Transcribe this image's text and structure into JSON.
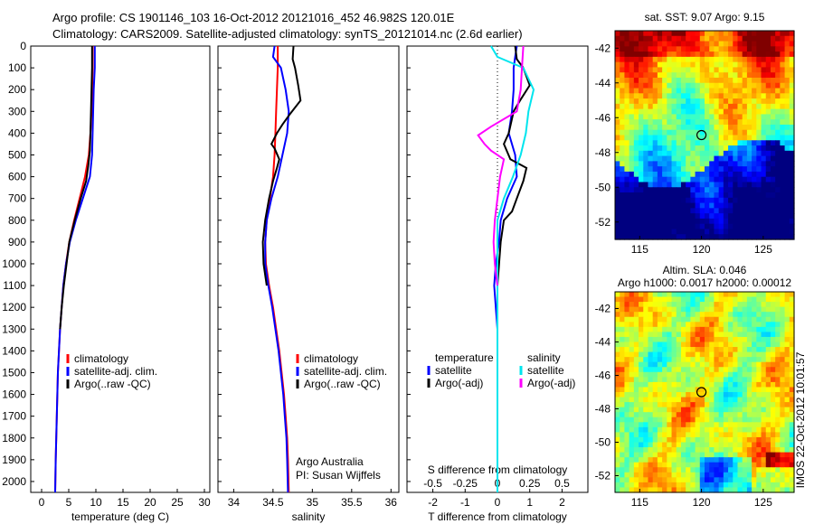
{
  "header": {
    "title_line1": "Argo profile: CS 1901146_103 16-Oct-2012 20121016_452 46.982S 120.01E",
    "title_line2": "Climatology: CARS2009. Satellite-adjusted climatology: synTS_20121014.nc (2.6d earlier)"
  },
  "depth_axis": {
    "ticks": [
      "0",
      "100",
      "200",
      "300",
      "400",
      "500",
      "600",
      "700",
      "800",
      "900",
      "1000",
      "1100",
      "1200",
      "1300",
      "1400",
      "1500",
      "1600",
      "1700",
      "1800",
      "1900",
      "2000"
    ],
    "range": [
      0,
      2050
    ]
  },
  "colors": {
    "climatology": "#ff0000",
    "satellite": "#0000ff",
    "argo": "#000000",
    "sal_satellite": "#00e5ee",
    "sal_argo": "#ff00ff"
  },
  "chart_data": [
    {
      "type": "line",
      "xlabel": "temperature (deg C)",
      "xlim": [
        -2,
        31
      ],
      "xticks": [
        "0",
        "5",
        "10",
        "15",
        "20",
        "25",
        "30"
      ],
      "ylim": [
        0,
        2050
      ],
      "legend": [
        "climatology",
        "satellite-adj. clim.",
        "Argo(..raw -QC)"
      ],
      "series": [
        {
          "name": "climatology",
          "points": [
            [
              9.4,
              0
            ],
            [
              9.4,
              100
            ],
            [
              9.3,
              200
            ],
            [
              9.2,
              300
            ],
            [
              9.0,
              400
            ],
            [
              8.7,
              500
            ],
            [
              8.0,
              600
            ],
            [
              7.0,
              700
            ],
            [
              6.0,
              800
            ],
            [
              5.1,
              900
            ],
            [
              4.5,
              1000
            ],
            [
              4.0,
              1100
            ],
            [
              3.7,
              1200
            ],
            [
              3.4,
              1300
            ],
            [
              3.2,
              1400
            ],
            [
              3.0,
              1500
            ],
            [
              2.9,
              1600
            ],
            [
              2.8,
              1700
            ],
            [
              2.7,
              1800
            ],
            [
              2.6,
              1900
            ],
            [
              2.5,
              2050
            ]
          ]
        },
        {
          "name": "satellite-adj. clim.",
          "points": [
            [
              9.8,
              0
            ],
            [
              9.8,
              100
            ],
            [
              9.6,
              200
            ],
            [
              9.5,
              300
            ],
            [
              9.4,
              400
            ],
            [
              9.3,
              500
            ],
            [
              8.9,
              600
            ],
            [
              7.6,
              700
            ],
            [
              6.3,
              800
            ],
            [
              5.2,
              900
            ],
            [
              4.5,
              1000
            ],
            [
              4.0,
              1100
            ],
            [
              3.7,
              1200
            ],
            [
              3.4,
              1300
            ],
            [
              3.2,
              1400
            ],
            [
              3.0,
              1500
            ],
            [
              2.9,
              1600
            ],
            [
              2.8,
              1700
            ],
            [
              2.7,
              1800
            ],
            [
              2.6,
              1900
            ],
            [
              2.5,
              2050
            ]
          ]
        },
        {
          "name": "Argo(..raw -QC)",
          "points": [
            [
              9.3,
              0
            ],
            [
              9.3,
              100
            ],
            [
              9.2,
              200
            ],
            [
              9.1,
              300
            ],
            [
              9.0,
              400
            ],
            [
              8.9,
              480
            ],
            [
              8.6,
              550
            ],
            [
              8.2,
              620
            ],
            [
              7.2,
              700
            ],
            [
              6.1,
              800
            ],
            [
              5.1,
              900
            ],
            [
              4.6,
              1000
            ],
            [
              4.1,
              1100
            ],
            [
              3.7,
              1200
            ],
            [
              3.4,
              1300
            ]
          ]
        }
      ]
    },
    {
      "type": "line",
      "xlabel": "salinity",
      "xlim": [
        33.8,
        36.1
      ],
      "xticks": [
        "34",
        "34.5",
        "35",
        "35.5",
        "36"
      ],
      "ylim": [
        0,
        2050
      ],
      "legend": [
        "climatology",
        "satellite-adj. clim.",
        "Argo(..raw -QC)"
      ],
      "annotation": [
        "Argo Australia",
        "PI: Susan Wijffels"
      ],
      "series": [
        {
          "name": "climatology",
          "points": [
            [
              34.56,
              0
            ],
            [
              34.56,
              100
            ],
            [
              34.55,
              200
            ],
            [
              34.54,
              300
            ],
            [
              34.53,
              400
            ],
            [
              34.52,
              500
            ],
            [
              34.5,
              600
            ],
            [
              34.46,
              700
            ],
            [
              34.42,
              800
            ],
            [
              34.4,
              900
            ],
            [
              34.41,
              1000
            ],
            [
              34.45,
              1100
            ],
            [
              34.5,
              1200
            ],
            [
              34.54,
              1300
            ],
            [
              34.58,
              1400
            ],
            [
              34.61,
              1500
            ],
            [
              34.64,
              1600
            ],
            [
              34.66,
              1700
            ],
            [
              34.68,
              1800
            ],
            [
              34.69,
              1900
            ],
            [
              34.7,
              2050
            ]
          ]
        },
        {
          "name": "satellite-adj. clim.",
          "points": [
            [
              34.52,
              0
            ],
            [
              34.5,
              50
            ],
            [
              34.6,
              100
            ],
            [
              34.66,
              200
            ],
            [
              34.7,
              300
            ],
            [
              34.68,
              400
            ],
            [
              34.62,
              500
            ],
            [
              34.56,
              600
            ],
            [
              34.48,
              700
            ],
            [
              34.42,
              800
            ],
            [
              34.4,
              900
            ],
            [
              34.4,
              1000
            ],
            [
              34.44,
              1100
            ],
            [
              34.49,
              1200
            ],
            [
              34.53,
              1300
            ],
            [
              34.57,
              1400
            ],
            [
              34.6,
              1500
            ],
            [
              34.63,
              1600
            ],
            [
              34.65,
              1700
            ],
            [
              34.67,
              1800
            ],
            [
              34.68,
              1900
            ],
            [
              34.69,
              2050
            ]
          ]
        },
        {
          "name": "Argo(..raw -QC)",
          "points": [
            [
              34.76,
              0
            ],
            [
              34.75,
              60
            ],
            [
              34.78,
              100
            ],
            [
              34.82,
              180
            ],
            [
              34.85,
              250
            ],
            [
              34.72,
              310
            ],
            [
              34.62,
              360
            ],
            [
              34.55,
              400
            ],
            [
              34.48,
              450
            ],
            [
              34.52,
              470
            ],
            [
              34.58,
              520
            ],
            [
              34.55,
              560
            ],
            [
              34.5,
              620
            ],
            [
              34.45,
              700
            ],
            [
              34.4,
              800
            ],
            [
              34.37,
              900
            ],
            [
              34.38,
              1000
            ],
            [
              34.42,
              1100
            ]
          ]
        }
      ]
    },
    {
      "type": "line",
      "xlabel": "T difference from climatology",
      "xlim": [
        -2.8,
        2.8
      ],
      "xticks": [
        "-2",
        "-1",
        "0",
        "1",
        "2"
      ],
      "xlabel_top": "S difference from climatology",
      "xticks_top": [
        "-0.5",
        "-0.25",
        "0",
        "0.25",
        "0.5"
      ],
      "ylim": [
        0,
        2050
      ],
      "legend_left_title": "temperature",
      "legend_right_title": "salinity",
      "legend": [
        "satellite",
        "Argo(-adj)",
        "satellite",
        "Argo(-adj)"
      ],
      "series": [
        {
          "name": "satellite",
          "var": "T",
          "points": [
            [
              0.6,
              0
            ],
            [
              0.55,
              50
            ],
            [
              0.5,
              100
            ],
            [
              0.5,
              200
            ],
            [
              0.45,
              300
            ],
            [
              0.35,
              400
            ],
            [
              0.55,
              500
            ],
            [
              0.6,
              600
            ],
            [
              0.3,
              700
            ],
            [
              0.1,
              800
            ],
            [
              0.05,
              900
            ],
            [
              -0.05,
              1000
            ],
            [
              -0.1,
              1100
            ],
            [
              -0.05,
              1200
            ],
            [
              0,
              1300
            ],
            [
              0,
              1400
            ],
            [
              0,
              1600
            ],
            [
              0,
              1800
            ],
            [
              0,
              2000
            ]
          ]
        },
        {
          "name": "Argo(-adj)",
          "var": "T",
          "points": [
            [
              0.55,
              0
            ],
            [
              0.6,
              60
            ],
            [
              0.8,
              100
            ],
            [
              1.0,
              180
            ],
            [
              0.7,
              250
            ],
            [
              0.5,
              300
            ],
            [
              0.35,
              400
            ],
            [
              0.2,
              450
            ],
            [
              0.4,
              520
            ],
            [
              0.9,
              560
            ],
            [
              0.8,
              620
            ],
            [
              0.6,
              700
            ],
            [
              0.45,
              760
            ],
            [
              0.2,
              800
            ],
            [
              0.1,
              900
            ],
            [
              0.05,
              1000
            ],
            [
              0,
              1100
            ],
            [
              0,
              1200
            ],
            [
              0,
              1300
            ]
          ]
        },
        {
          "name": "satellite",
          "var": "S",
          "points": [
            [
              -0.05,
              0
            ],
            [
              0.0,
              50
            ],
            [
              0.2,
              100
            ],
            [
              0.28,
              200
            ],
            [
              0.24,
              300
            ],
            [
              0.22,
              400
            ],
            [
              0.18,
              500
            ],
            [
              0.12,
              600
            ],
            [
              0.05,
              700
            ],
            [
              0.0,
              800
            ],
            [
              0.0,
              900
            ],
            [
              0.0,
              1000
            ],
            [
              0.0,
              1200
            ],
            [
              0.0,
              1500
            ],
            [
              0.0,
              1800
            ],
            [
              0.0,
              2050
            ]
          ]
        },
        {
          "name": "Argo(-adj)",
          "var": "S",
          "points": [
            [
              0.2,
              0
            ],
            [
              0.19,
              100
            ],
            [
              0.18,
              200
            ],
            [
              0.15,
              300
            ],
            [
              -0.05,
              370
            ],
            [
              -0.15,
              410
            ],
            [
              -0.1,
              450
            ],
            [
              -0.05,
              480
            ],
            [
              0.05,
              520
            ],
            [
              0.02,
              600
            ],
            [
              0.0,
              700
            ],
            [
              -0.02,
              800
            ],
            [
              -0.03,
              900
            ],
            [
              -0.02,
              1000
            ],
            [
              0.0,
              1100
            ]
          ]
        }
      ]
    },
    {
      "type": "heatmap",
      "title": "sat. SST: 9.07  Argo: 9.15",
      "xlim": [
        113,
        127.5
      ],
      "ylim": [
        -53,
        -41
      ],
      "xticks": [
        "115",
        "120",
        "125"
      ],
      "yticks": [
        "-42",
        "-44",
        "-46",
        "-48",
        "-50",
        "-52"
      ],
      "marker": [
        120,
        -47
      ]
    },
    {
      "type": "heatmap",
      "title_line1": "Altim. SLA: 0.046",
      "title_line2": "Argo h1000: 0.0017 h2000: 0.00012",
      "xlim": [
        113,
        127.5
      ],
      "ylim": [
        -53,
        -41
      ],
      "xticks": [
        "115",
        "120",
        "125"
      ],
      "yticks": [
        "-42",
        "-44",
        "-46",
        "-48",
        "-50",
        "-52"
      ],
      "marker": [
        120,
        -47
      ]
    }
  ],
  "stamp": "IMOS 22-Oct-2012 10:01:57"
}
